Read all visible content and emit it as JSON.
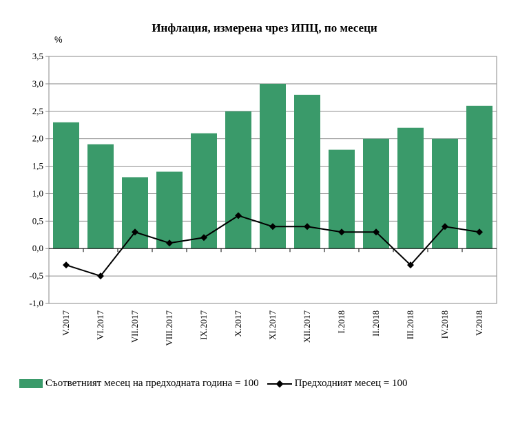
{
  "chart_data": {
    "type": "bar",
    "title": "Инфлация, измерена чрез ИПЦ, по месеци",
    "ylabel": "%",
    "xlabel": "",
    "ylim": [
      -1.0,
      3.5
    ],
    "yticks": [
      "3,5",
      "3,0",
      "2,5",
      "2,0",
      "1,5",
      "1,0",
      "0,5",
      "0,0",
      "-0,5",
      "-1,0"
    ],
    "ytick_values": [
      3.5,
      3.0,
      2.5,
      2.0,
      1.5,
      1.0,
      0.5,
      0.0,
      -0.5,
      -1.0
    ],
    "categories": [
      "V.2017",
      "VI.2017",
      "VII.2017",
      "VIII.2017",
      "IX.2017",
      "X.2017",
      "XI.2017",
      "XII.2017",
      "I.2018",
      "II.2018",
      "III.2018",
      "IV.2018",
      "V.2018"
    ],
    "series": [
      {
        "name": "Съответният месец на предходната година = 100",
        "kind": "bar",
        "color": "#3a9a6a",
        "values": [
          2.3,
          1.9,
          1.3,
          1.4,
          2.1,
          2.5,
          3.0,
          2.8,
          1.8,
          2.0,
          2.2,
          2.0,
          2.6
        ]
      },
      {
        "name": "Предходният месец = 100",
        "kind": "line",
        "color": "#000000",
        "values": [
          -0.3,
          -0.5,
          0.3,
          0.1,
          0.2,
          0.6,
          0.4,
          0.4,
          0.3,
          0.3,
          -0.3,
          0.4,
          0.3
        ]
      }
    ],
    "grid": true,
    "legend_position": "bottom"
  }
}
